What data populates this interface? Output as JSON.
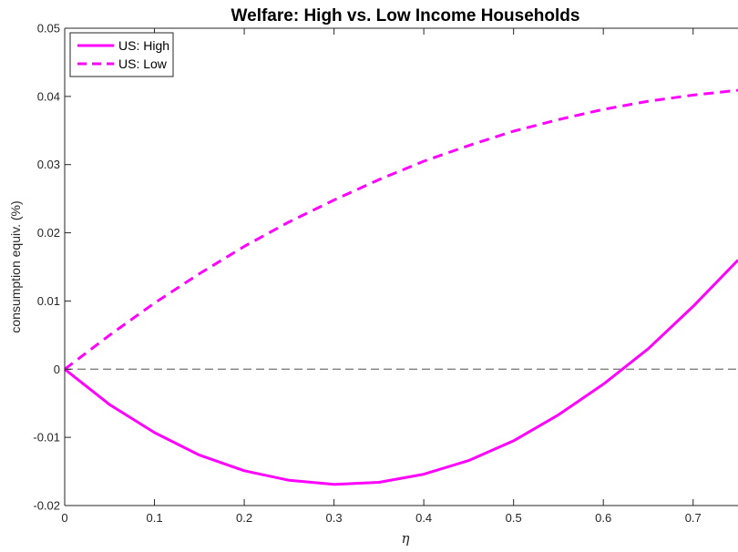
{
  "chart_data": {
    "type": "line",
    "title": "Welfare: High vs. Low Income Households",
    "xlabel": "η",
    "ylabel": "consumption equiv. (%)",
    "xlim": [
      0,
      0.75
    ],
    "ylim": [
      -0.02,
      0.05
    ],
    "xticks": [
      0,
      0.1,
      0.2,
      0.3,
      0.4,
      0.5,
      0.6,
      0.7
    ],
    "xtick_labels": [
      "0",
      "0.1",
      "0.2",
      "0.3",
      "0.4",
      "0.5",
      "0.6",
      "0.7"
    ],
    "yticks": [
      -0.02,
      -0.01,
      0,
      0.01,
      0.02,
      0.03,
      0.04,
      0.05
    ],
    "ytick_labels": [
      "-0.02",
      "-0.01",
      "0",
      "0.01",
      "0.02",
      "0.03",
      "0.04",
      "0.05"
    ],
    "grid": false,
    "legend_position": "top-left",
    "reference_line": {
      "y": 0,
      "color": "#808080",
      "style": "dashed"
    },
    "x": [
      0,
      0.05,
      0.1,
      0.15,
      0.2,
      0.25,
      0.3,
      0.35,
      0.4,
      0.45,
      0.5,
      0.55,
      0.6,
      0.65,
      0.7,
      0.75
    ],
    "series": [
      {
        "name": "US: High",
        "style": "solid",
        "color": "#ff00ff",
        "values": [
          0,
          -0.0052,
          -0.0093,
          -0.0126,
          -0.0149,
          -0.0163,
          -0.0169,
          -0.0166,
          -0.0154,
          -0.0134,
          -0.0105,
          -0.0067,
          -0.0022,
          0.003,
          0.0092,
          0.016
        ]
      },
      {
        "name": "US: Low",
        "style": "dashed",
        "color": "#ff00ff",
        "values": [
          0,
          0.005,
          0.0097,
          0.014,
          0.018,
          0.0216,
          0.0248,
          0.0278,
          0.0305,
          0.0328,
          0.0349,
          0.0366,
          0.0381,
          0.0393,
          0.0402,
          0.0409
        ]
      }
    ]
  }
}
